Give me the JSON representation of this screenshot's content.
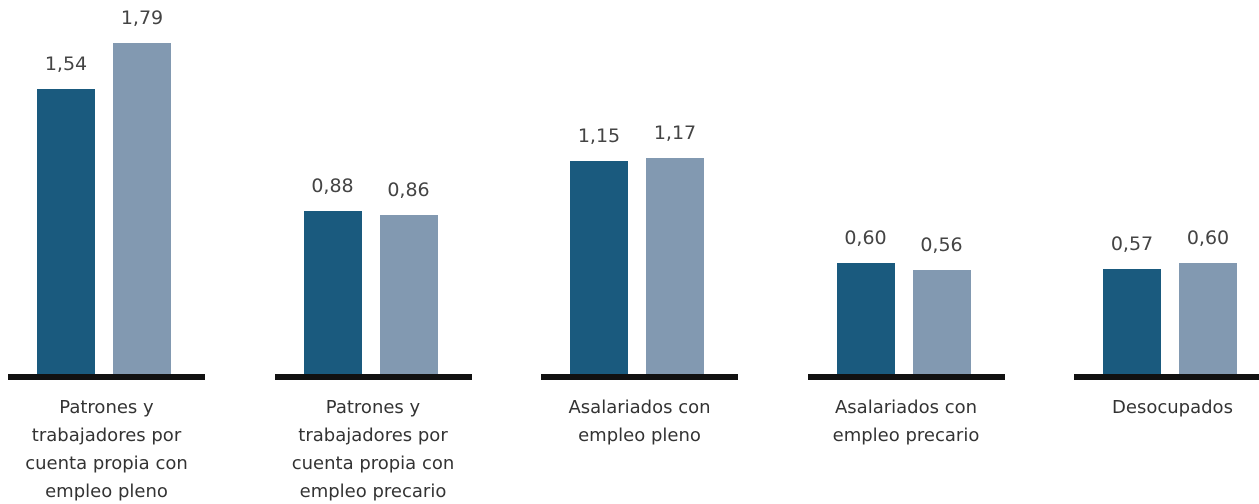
{
  "chart_data": {
    "type": "bar",
    "categories": [
      "Patrones y trabajadores por cuenta propia con empleo pleno",
      "Patrones y trabajadores por cuenta propia con empleo precario",
      "Asalariados con empleo pleno",
      "Asalariados con empleo precario",
      "Desocupados"
    ],
    "series": [
      {
        "color": "#1a5a7e",
        "values": [
          1.54,
          0.88,
          1.15,
          0.6,
          0.57
        ],
        "value_labels": [
          "1,54",
          "0,88",
          "1,15",
          "0,60",
          "0,57"
        ]
      },
      {
        "color": "#8299b1",
        "values": [
          1.79,
          0.86,
          1.17,
          0.56,
          0.6
        ],
        "value_labels": [
          "1,79",
          "0,86",
          "1,17",
          "0,56",
          "0,60"
        ]
      }
    ]
  }
}
